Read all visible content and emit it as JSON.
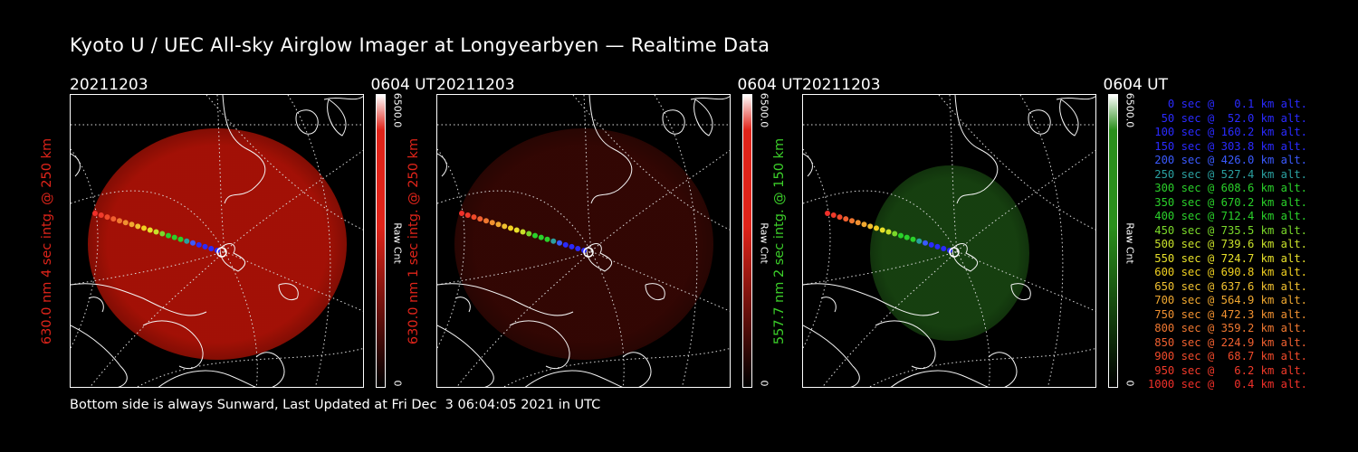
{
  "title": "Kyoto U / UEC All-sky Airglow Imager at Longyearbyen — Realtime Data",
  "footer": "Bottom side is always Sunward, Last Updated at Fri Dec  3 06:04:05 2021 in UTC",
  "panels": [
    {
      "date": "20211203",
      "time": "0604 UT",
      "ylabel": "630.0 nm 4 sec intg. @ 250 km",
      "label_color": "#e0241a",
      "glow_color": "#b01206",
      "glow_opacity": 0.92,
      "cbar_max": "6500.0",
      "cbar_min": "0",
      "cbar_name": "Raw Cnt",
      "cbar_color": "#e0241a"
    },
    {
      "date": "20211203",
      "time": "0604 UT",
      "ylabel": "630.0 nm 1 sec intg. @ 250 km",
      "label_color": "#e0241a",
      "glow_color": "#5a0c06",
      "glow_opacity": 0.55,
      "cbar_max": "6500.0",
      "cbar_min": "0",
      "cbar_name": "Raw Cnt",
      "cbar_color": "#e0241a"
    },
    {
      "date": "20211203",
      "time": "0604 UT",
      "ylabel": "557.7 nm 2 sec intg. @ 150 km",
      "label_color": "#3ccf2a",
      "glow_color": "#1f5a16",
      "glow_opacity": 0.7,
      "cbar_max": "6500.0",
      "cbar_min": "0",
      "cbar_name": "Raw Cnt",
      "cbar_color": "#2a8f1c"
    }
  ],
  "legend": [
    {
      "text": "0 sec @   0.1 km alt.",
      "color": "#2a2aff"
    },
    {
      "text": "50 sec @  52.0 km alt.",
      "color": "#2a2aff"
    },
    {
      "text": "100 sec @ 160.2 km alt.",
      "color": "#2a2aff"
    },
    {
      "text": "150 sec @ 303.8 km alt.",
      "color": "#2a2aff"
    },
    {
      "text": "200 sec @ 426.0 km alt.",
      "color": "#3a5aff"
    },
    {
      "text": "250 sec @ 527.4 km alt.",
      "color": "#2aa0a0"
    },
    {
      "text": "300 sec @ 608.6 km alt.",
      "color": "#2ad02a"
    },
    {
      "text": "350 sec @ 670.2 km alt.",
      "color": "#2ad02a"
    },
    {
      "text": "400 sec @ 712.4 km alt.",
      "color": "#2ad02a"
    },
    {
      "text": "450 sec @ 735.5 km alt.",
      "color": "#7ad82a"
    },
    {
      "text": "500 sec @ 739.6 km alt.",
      "color": "#c8e02a"
    },
    {
      "text": "550 sec @ 724.7 km alt.",
      "color": "#e8e02a"
    },
    {
      "text": "600 sec @ 690.8 km alt.",
      "color": "#f0d020"
    },
    {
      "text": "650 sec @ 637.6 km alt.",
      "color": "#f0c030"
    },
    {
      "text": "700 sec @ 564.9 km alt.",
      "color": "#f0a830"
    },
    {
      "text": "750 sec @ 472.3 km alt.",
      "color": "#f09030"
    },
    {
      "text": "800 sec @ 359.2 km alt.",
      "color": "#f07830"
    },
    {
      "text": "850 sec @ 224.9 km alt.",
      "color": "#f06030"
    },
    {
      "text": "900 sec @  68.7 km alt.",
      "color": "#f04a2a"
    },
    {
      "text": "950 sec @   6.2 km alt.",
      "color": "#f03a2a"
    },
    {
      "text": "1000 sec @   0.4 km alt.",
      "color": "#f0302a"
    }
  ]
}
